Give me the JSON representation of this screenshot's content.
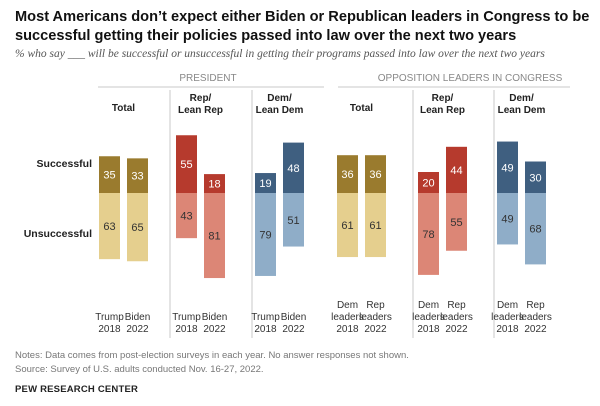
{
  "title": "Most Americans don’t expect either Biden or Republican leaders in Congress to be successful getting their policies passed into law over the next two years",
  "subtitle": "% who say ___ will be successful or unsuccessful in getting their programs passed into law over the next two years",
  "notes": "Notes: Data comes from post-election surveys in each year. No answer responses not shown.",
  "source": "Source: Survey of U.S. adults conducted Nov. 16-27, 2022.",
  "brand": "PEW RESEARCH CENTER",
  "chart_data": {
    "type": "bar",
    "row_labels": {
      "positive": "Successful",
      "negative": "Unsuccessful"
    },
    "panels": [
      {
        "label": "PRESIDENT",
        "groups": [
          {
            "label": [
              "Total"
            ],
            "bars": [
              {
                "category": [
                  "Trump",
                  "2018"
                ],
                "successful": 35,
                "unsuccessful": 63,
                "color_pos": "#9a7b2e",
                "color_neg": "#e5cf8e"
              },
              {
                "category": [
                  "Biden",
                  "2022"
                ],
                "successful": 33,
                "unsuccessful": 65,
                "color_pos": "#9a7b2e",
                "color_neg": "#e5cf8e"
              }
            ]
          },
          {
            "label": [
              "Rep/",
              "Lean Rep"
            ],
            "bars": [
              {
                "category": [
                  "Trump",
                  "2018"
                ],
                "successful": 55,
                "unsuccessful": 43,
                "color_pos": "#b63a2d",
                "color_neg": "#dc8676"
              },
              {
                "category": [
                  "Biden",
                  "2022"
                ],
                "successful": 18,
                "unsuccessful": 81,
                "color_pos": "#b63a2d",
                "color_neg": "#dc8676"
              }
            ]
          },
          {
            "label": [
              "Dem/",
              "Lean Dem"
            ],
            "bars": [
              {
                "category": [
                  "Trump",
                  "2018"
                ],
                "successful": 19,
                "unsuccessful": 79,
                "color_pos": "#3f5f80",
                "color_neg": "#8fadc8"
              },
              {
                "category": [
                  "Biden",
                  "2022"
                ],
                "successful": 48,
                "unsuccessful": 51,
                "color_pos": "#3f5f80",
                "color_neg": "#8fadc8"
              }
            ]
          }
        ]
      },
      {
        "label": "OPPOSITION LEADERS IN CONGRESS",
        "groups": [
          {
            "label": [
              "Total"
            ],
            "bars": [
              {
                "category": [
                  "Dem",
                  "leaders",
                  "2018"
                ],
                "successful": 36,
                "unsuccessful": 61,
                "color_pos": "#9a7b2e",
                "color_neg": "#e5cf8e"
              },
              {
                "category": [
                  "Rep",
                  "leaders",
                  "2022"
                ],
                "successful": 36,
                "unsuccessful": 61,
                "color_pos": "#9a7b2e",
                "color_neg": "#e5cf8e"
              }
            ]
          },
          {
            "label": [
              "Rep/",
              "Lean Rep"
            ],
            "bars": [
              {
                "category": [
                  "Dem",
                  "leaders",
                  "2018"
                ],
                "successful": 20,
                "unsuccessful": 78,
                "color_pos": "#b63a2d",
                "color_neg": "#dc8676"
              },
              {
                "category": [
                  "Rep",
                  "leaders",
                  "2022"
                ],
                "successful": 44,
                "unsuccessful": 55,
                "color_pos": "#b63a2d",
                "color_neg": "#dc8676"
              }
            ]
          },
          {
            "label": [
              "Dem/",
              "Lean Dem"
            ],
            "bars": [
              {
                "category": [
                  "Dem",
                  "leaders",
                  "2018"
                ],
                "successful": 49,
                "unsuccessful": 49,
                "color_pos": "#3f5f80",
                "color_neg": "#8fadc8"
              },
              {
                "category": [
                  "Rep",
                  "leaders",
                  "2022"
                ],
                "successful": 30,
                "unsuccessful": 68,
                "color_pos": "#3f5f80",
                "color_neg": "#8fadc8"
              }
            ]
          }
        ]
      }
    ]
  }
}
